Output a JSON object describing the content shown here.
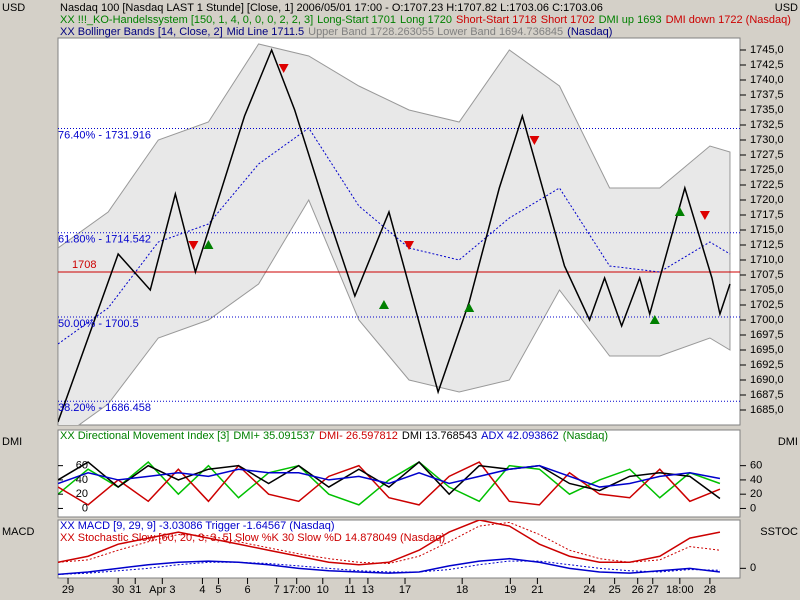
{
  "chart_data": [
    {
      "type": "line",
      "y_label_left": "USD",
      "y_label_right": "USD",
      "header_lines": [
        [
          {
            "text": "Nasdaq 100 [Nasdaq LAST 1 Stunde] [Close, 1] 2006/05/01 17:00 - O:1707.23 H:1707.82 L:1703.06 C:1703.06",
            "color": "#000000"
          }
        ],
        [
          {
            "text": "XX !!!_KO-Handelssystem [150, 1, 4, 0, 0, 0, 2, 2, 3]",
            "color": "#008000"
          },
          {
            "text": "Long-Start 1701",
            "color": "#008000"
          },
          {
            "text": "Long 1720",
            "color": "#008000"
          },
          {
            "text": "Short-Start 1718",
            "color": "#cc0000"
          },
          {
            "text": "Short 1702",
            "color": "#cc0000"
          },
          {
            "text": "DMI up 1693",
            "color": "#008000"
          },
          {
            "text": "DMI down 1722 (Nasdaq)",
            "color": "#cc0000"
          }
        ],
        [
          {
            "text": "XX Bollinger Bands [14, Close, 2]",
            "color": "#000080"
          },
          {
            "text": "Mid Line 1711.5",
            "color": "#000080"
          },
          {
            "text": "Upper Band 1728.263055 Lower Band 1694.736845",
            "color": "#808080"
          },
          {
            "text": "(Nasdaq)",
            "color": "#000080"
          }
        ]
      ],
      "xlim": [
        0,
        68
      ],
      "xticks": [
        {
          "value": 1.0,
          "label": "29"
        },
        {
          "value": 6.0,
          "label": "30"
        },
        {
          "value": 7.7,
          "label": "31"
        },
        {
          "value": 10.4,
          "label": "Apr 3"
        },
        {
          "value": 14.4,
          "label": "4"
        },
        {
          "value": 16.0,
          "label": "5"
        },
        {
          "value": 18.9,
          "label": "6"
        },
        {
          "value": 21.8,
          "label": "7"
        },
        {
          "value": 23.8,
          "label": "17:00"
        },
        {
          "value": 26.4,
          "label": "10"
        },
        {
          "value": 29.1,
          "label": "11"
        },
        {
          "value": 30.9,
          "label": "13"
        },
        {
          "value": 34.6,
          "label": "17"
        },
        {
          "value": 40.3,
          "label": "18"
        },
        {
          "value": 45.1,
          "label": "19"
        },
        {
          "value": 47.8,
          "label": "21"
        },
        {
          "value": 53.0,
          "label": "24"
        },
        {
          "value": 55.5,
          "label": "25"
        },
        {
          "value": 57.8,
          "label": "26"
        },
        {
          "value": 59.3,
          "label": "27"
        },
        {
          "value": 62.0,
          "label": "18:00"
        },
        {
          "value": 65.0,
          "label": "28"
        }
      ],
      "ylim": [
        1682.5,
        1747
      ],
      "yticks": [
        {
          "value": 1685,
          "label": "1685,0"
        },
        {
          "value": 1687.5,
          "label": "1687,5"
        },
        {
          "value": 1690,
          "label": "1690,0"
        },
        {
          "value": 1692.5,
          "label": "1692,5"
        },
        {
          "value": 1695,
          "label": "1695,0"
        },
        {
          "value": 1697.5,
          "label": "1697,5"
        },
        {
          "value": 1700,
          "label": "1700,0"
        },
        {
          "value": 1702.5,
          "label": "1702,5"
        },
        {
          "value": 1705,
          "label": "1705,0"
        },
        {
          "value": 1707.5,
          "label": "1707,5"
        },
        {
          "value": 1710,
          "label": "1710,0"
        },
        {
          "value": 1712.5,
          "label": "1712,5"
        },
        {
          "value": 1715,
          "label": "1715,0"
        },
        {
          "value": 1717.5,
          "label": "1717,5"
        },
        {
          "value": 1720,
          "label": "1720,0"
        },
        {
          "value": 1722.5,
          "label": "1722,5"
        },
        {
          "value": 1725,
          "label": "1725,0"
        },
        {
          "value": 1727.5,
          "label": "1727,5"
        },
        {
          "value": 1730,
          "label": "1730,0"
        },
        {
          "value": 1732.5,
          "label": "1732,5"
        },
        {
          "value": 1735,
          "label": "1735,0"
        },
        {
          "value": 1737.5,
          "label": "1737,5"
        },
        {
          "value": 1740,
          "label": "1740,0"
        },
        {
          "value": 1742.5,
          "label": "1742,5"
        },
        {
          "value": 1745,
          "label": "1745,0"
        }
      ],
      "band": {
        "color": "#e8e8e8",
        "x": [
          0,
          5,
          10,
          15,
          20,
          25,
          30,
          35,
          40,
          45,
          50,
          55,
          60,
          65,
          67
        ],
        "upper": [
          1712,
          1718,
          1730,
          1733,
          1746,
          1744,
          1739,
          1735,
          1733,
          1745,
          1739,
          1722,
          1722,
          1729,
          1728
        ],
        "lower": [
          1680,
          1686,
          1697,
          1700,
          1706,
          1720,
          1700,
          1690,
          1688,
          1690,
          1705,
          1694,
          1694,
          1697,
          1695
        ]
      },
      "series": [
        {
          "color": "#0000cc",
          "dash": true,
          "x": [
            0,
            5,
            10,
            15,
            20,
            25,
            30,
            35,
            40,
            45,
            50,
            55,
            60,
            65,
            67
          ],
          "values": [
            1696,
            1702,
            1713,
            1716,
            1726,
            1732,
            1719,
            1712,
            1710,
            1717,
            1722,
            1709,
            1708,
            1713,
            1711
          ]
        },
        {
          "color": "#000000",
          "x": [
            0,
            6,
            9.2,
            11.7,
            13.7,
            18.6,
            21.3,
            23.6,
            27,
            29.6,
            33,
            37.9,
            41,
            44,
            46.3,
            50.5,
            53,
            54.5,
            56.2,
            58,
            59,
            62.5,
            65.2,
            66,
            67
          ],
          "values": [
            1683,
            1711,
            1705,
            1721,
            1708,
            1734,
            1745,
            1735,
            1717,
            1704,
            1718,
            1688,
            1703,
            1722,
            1734,
            1709,
            1700,
            1707,
            1699,
            1707,
            1701,
            1722,
            1707,
            1701,
            1706
          ]
        }
      ],
      "levels": [
        {
          "value": 1731.916,
          "label": "76.40% - 1731.916"
        },
        {
          "value": 1714.542,
          "label": "61.80% - 1714.542"
        },
        {
          "value": 1700.5,
          "label": "50.00% - 1700.5"
        },
        {
          "value": 1686.458,
          "label": "38.20% - 1686.458"
        }
      ],
      "level_color": "#0000cc",
      "hline": {
        "value": 1708,
        "color": "#cc0000"
      },
      "buy_signals": {
        "color": "#008000",
        "x": [
          15.0,
          32.5,
          41,
          59.5,
          62
        ],
        "values": [
          1712.5,
          1702.5,
          1702,
          1700,
          1718
        ]
      },
      "sell_signals": {
        "color": "#dd0000",
        "x": [
          22.5,
          13.5,
          35,
          47.5,
          64.5
        ],
        "values": [
          1742,
          1712.5,
          1712.5,
          1730,
          1717.5
        ]
      }
    },
    {
      "type": "line",
      "y_label_left": "DMI",
      "y_label_right": "DMI",
      "header_lines": [
        [
          {
            "text": "XX Directional Movement Index [3]",
            "color": "#008000"
          },
          {
            "text": "DMI+ 35.091537",
            "color": "#008000"
          },
          {
            "text": "DMI- 26.597812",
            "color": "#cc0000"
          },
          {
            "text": "DMI 13.768543",
            "color": "#000000"
          },
          {
            "text": "ADX 42.093862",
            "color": "#0000cc"
          },
          {
            "text": "(Nasdaq)",
            "color": "#008000"
          }
        ]
      ],
      "ylim": [
        -12,
        110
      ],
      "yticks": [
        0,
        20,
        40,
        60
      ],
      "ytick_sides": [
        "left",
        "right"
      ],
      "x": [
        0,
        3,
        6,
        9,
        12,
        15,
        18,
        21,
        24,
        27,
        30,
        33,
        36,
        39,
        42,
        45,
        48,
        51,
        54,
        57,
        60,
        63,
        66
      ],
      "series": [
        {
          "color": "#00c000",
          "values": [
            20,
            55,
            30,
            65,
            20,
            60,
            15,
            50,
            60,
            20,
            5,
            40,
            65,
            30,
            10,
            60,
            55,
            20,
            40,
            55,
            15,
            50,
            35
          ]
        },
        {
          "color": "#cc0000",
          "values": [
            30,
            5,
            40,
            10,
            55,
            10,
            60,
            20,
            10,
            45,
            60,
            15,
            5,
            45,
            65,
            10,
            5,
            50,
            20,
            15,
            55,
            10,
            27
          ]
        },
        {
          "color": "#000000",
          "values": [
            40,
            65,
            30,
            60,
            40,
            55,
            60,
            35,
            60,
            30,
            55,
            30,
            65,
            20,
            60,
            55,
            60,
            35,
            25,
            45,
            50,
            45,
            14
          ]
        },
        {
          "color": "#0000cc",
          "values": [
            35,
            50,
            40,
            45,
            50,
            45,
            55,
            50,
            50,
            40,
            45,
            35,
            50,
            35,
            45,
            55,
            60,
            45,
            30,
            35,
            45,
            50,
            42
          ]
        }
      ]
    },
    {
      "type": "line",
      "y_label_left": "MACD",
      "y_label_right": "SSTOC",
      "header_lines": [
        [
          {
            "text": "XX MACD [9, 29, 9] -3.03086 Trigger -1.64567 (Nasdaq)",
            "color": "#0000cc"
          }
        ],
        [
          {
            "text": "XX Stochastic Slow [60, 20, 3, 3, 5] Slow %K 30 Slow %D 14.878049 (Nasdaq)",
            "color": "#cc0000"
          }
        ]
      ],
      "ylim": [
        -8,
        40
      ],
      "yticks": [
        0
      ],
      "ytick_sides": [
        "right"
      ],
      "x": [
        0,
        3,
        6,
        9,
        12,
        15,
        18,
        21,
        24,
        27,
        30,
        33,
        36,
        39,
        42,
        45,
        48,
        51,
        54,
        57,
        60,
        63,
        66
      ],
      "series": [
        {
          "color": "#0000cc",
          "values": [
            -5,
            -3,
            0,
            3,
            5,
            6,
            5,
            3,
            0,
            -2,
            -3,
            -4,
            -3,
            2,
            6,
            8,
            5,
            0,
            -3,
            -4,
            -2,
            0,
            -3
          ]
        },
        {
          "color": "#0000cc",
          "dash": true,
          "values": [
            -5,
            -4,
            -2,
            0,
            3,
            5,
            5,
            4,
            2,
            0,
            -2,
            -3,
            -3,
            -1,
            3,
            6,
            6,
            3,
            0,
            -2,
            -3,
            -1,
            -1.6
          ]
        },
        {
          "color": "#cc0000",
          "values": [
            5,
            10,
            20,
            25,
            30,
            25,
            20,
            15,
            10,
            5,
            3,
            5,
            15,
            30,
            40,
            35,
            20,
            10,
            5,
            5,
            10,
            25,
            30
          ]
        },
        {
          "color": "#cc0000",
          "dash": true,
          "values": [
            5,
            7,
            15,
            22,
            28,
            27,
            22,
            17,
            12,
            8,
            5,
            4,
            10,
            22,
            35,
            38,
            28,
            15,
            8,
            5,
            7,
            18,
            15
          ]
        }
      ]
    }
  ]
}
